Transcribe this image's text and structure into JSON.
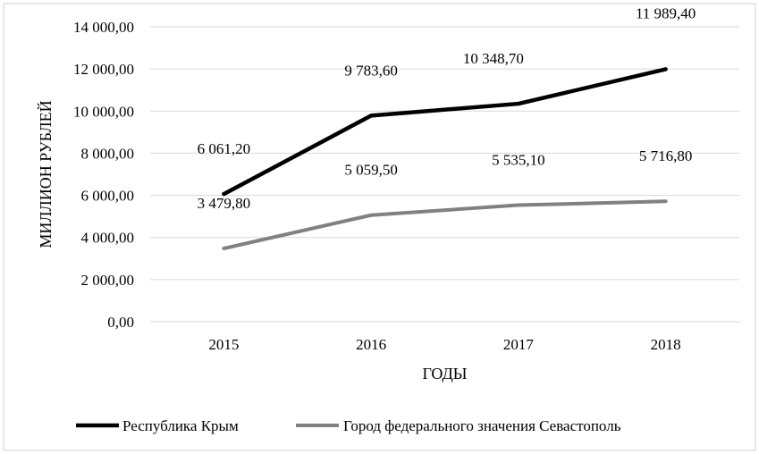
{
  "chart_data": {
    "type": "line",
    "title": "",
    "xlabel": "ГОДЫ",
    "ylabel": "МИЛЛИОН РУБЛЕЙ",
    "categories": [
      "2015",
      "2016",
      "2017",
      "2018"
    ],
    "ylim": [
      0,
      14000
    ],
    "yticks": [
      0,
      2000,
      4000,
      6000,
      8000,
      10000,
      12000,
      14000
    ],
    "ytick_labels": [
      "0,00",
      "2 000,00",
      "4 000,00",
      "6 000,00",
      "8 000,00",
      "10 000,00",
      "12 000,00",
      "14 000,00"
    ],
    "grid": true,
    "legend_position": "bottom",
    "series": [
      {
        "name": "Республика Крым",
        "color": "#000000",
        "values": [
          6061.2,
          9783.6,
          10348.7,
          11989.4
        ],
        "labels": [
          "6 061,20",
          "9 783,60",
          "10 348,70",
          "11 989,40"
        ]
      },
      {
        "name": "Город федерального значения Севастополь",
        "color": "#808080",
        "values": [
          3479.8,
          5059.5,
          5535.1,
          5716.8
        ],
        "labels": [
          "3 479,80",
          "5 059,50",
          "5 535,10",
          "5 716,80"
        ]
      }
    ]
  }
}
